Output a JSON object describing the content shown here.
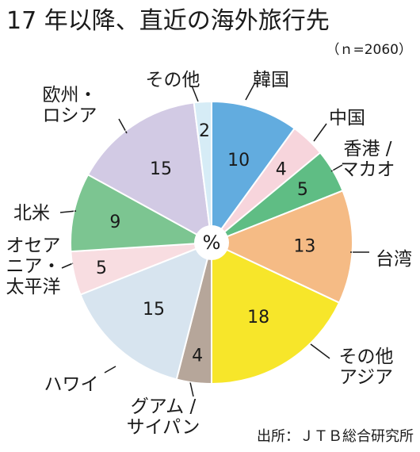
{
  "title": "17 年以降、直近の海外旅行先",
  "sample_size": "（ｎ=2060）",
  "center_label": "%",
  "source": "出所：ＪＴＢ総合研究所",
  "chart_data": {
    "type": "pie",
    "title": "17 年以降、直近の海外旅行先",
    "unit": "%",
    "slices": [
      {
        "label": [
          "韓国"
        ],
        "value": 10,
        "color": "#62acdf"
      },
      {
        "label": [
          "中国"
        ],
        "value": 4,
        "color": "#f7d5dc"
      },
      {
        "label": [
          "香港 /",
          "マカオ"
        ],
        "value": 5,
        "color": "#5fbd84"
      },
      {
        "label": [
          "台湾"
        ],
        "value": 13,
        "color": "#f5bb85"
      },
      {
        "label": [
          "その他",
          "アジア"
        ],
        "value": 18,
        "color": "#f7e62a"
      },
      {
        "label": [
          "グアム /",
          "サイパン"
        ],
        "value": 4,
        "color": "#b6a69a"
      },
      {
        "label": [
          "ハワイ"
        ],
        "value": 15,
        "color": "#d7e4ef"
      },
      {
        "label": [
          "オセア",
          "ニア・",
          "太平洋"
        ],
        "value": 5,
        "color": "#f8dde1"
      },
      {
        "label": [
          "北米"
        ],
        "value": 9,
        "color": "#7cc591"
      },
      {
        "label": [
          "欧州・",
          "ロシア"
        ],
        "value": 15,
        "color": "#d2cae4"
      },
      {
        "label": [
          "その他"
        ],
        "value": 2,
        "color": "#d6ecf6"
      }
    ]
  }
}
